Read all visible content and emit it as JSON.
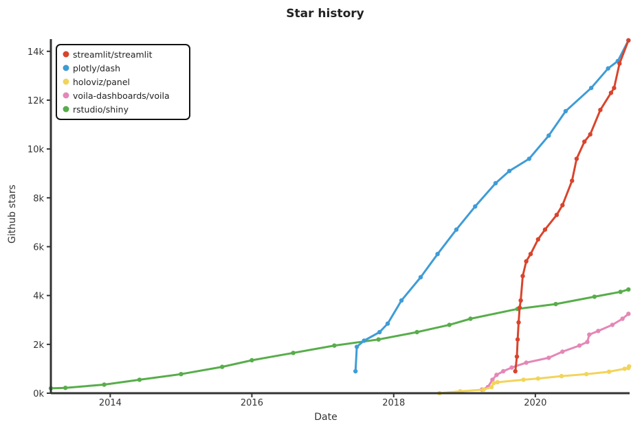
{
  "chart_data": {
    "type": "line",
    "title": "Star history",
    "xlabel": "Date",
    "ylabel": "Github stars",
    "xlim": [
      "2013-03-01",
      "2021-05-01"
    ],
    "ylim": [
      0,
      14500
    ],
    "x_ticks": [
      {
        "label": "2014",
        "date": "2014-01-01"
      },
      {
        "label": "2016",
        "date": "2016-01-01"
      },
      {
        "label": "2018",
        "date": "2018-01-01"
      },
      {
        "label": "2020",
        "date": "2020-01-01"
      }
    ],
    "y_ticks": [
      {
        "label": "0k",
        "value": 0
      },
      {
        "label": "2k",
        "value": 2000
      },
      {
        "label": "4k",
        "value": 4000
      },
      {
        "label": "6k",
        "value": 6000
      },
      {
        "label": "8k",
        "value": 8000
      },
      {
        "label": "10k",
        "value": 10000
      },
      {
        "label": "12k",
        "value": 12000
      },
      {
        "label": "14k",
        "value": 14000
      }
    ],
    "legend_position": "top-left",
    "grid": false,
    "series": [
      {
        "name": "streamlit/streamlit",
        "color": "#d9442c",
        "points": [
          [
            "2019-09-20",
            900
          ],
          [
            "2019-09-28",
            1500
          ],
          [
            "2019-10-02",
            2200
          ],
          [
            "2019-10-07",
            2900
          ],
          [
            "2019-10-12",
            3500
          ],
          [
            "2019-10-18",
            3800
          ],
          [
            "2019-10-28",
            4800
          ],
          [
            "2019-11-15",
            5400
          ],
          [
            "2019-12-08",
            5700
          ],
          [
            "2020-01-15",
            6300
          ],
          [
            "2020-02-20",
            6700
          ],
          [
            "2020-04-20",
            7300
          ],
          [
            "2020-05-20",
            7700
          ],
          [
            "2020-07-08",
            8700
          ],
          [
            "2020-08-01",
            9600
          ],
          [
            "2020-09-10",
            10300
          ],
          [
            "2020-10-10",
            10600
          ],
          [
            "2020-12-01",
            11600
          ],
          [
            "2021-01-25",
            12300
          ],
          [
            "2021-02-10",
            12500
          ],
          [
            "2021-03-10",
            13500
          ],
          [
            "2021-04-25",
            14450
          ]
        ]
      },
      {
        "name": "plotly/dash",
        "color": "#3e9cd6",
        "points": [
          [
            "2017-06-18",
            900
          ],
          [
            "2017-06-25",
            1900
          ],
          [
            "2017-08-01",
            2150
          ],
          [
            "2017-10-20",
            2500
          ],
          [
            "2017-12-01",
            2850
          ],
          [
            "2018-02-10",
            3800
          ],
          [
            "2018-05-20",
            4750
          ],
          [
            "2018-08-15",
            5700
          ],
          [
            "2018-11-20",
            6700
          ],
          [
            "2019-02-25",
            7650
          ],
          [
            "2019-06-10",
            8600
          ],
          [
            "2019-08-20",
            9100
          ],
          [
            "2019-11-30",
            9600
          ],
          [
            "2020-03-10",
            10550
          ],
          [
            "2020-06-05",
            11550
          ],
          [
            "2020-10-15",
            12500
          ],
          [
            "2021-01-10",
            13300
          ],
          [
            "2021-03-01",
            13600
          ],
          [
            "2021-04-25",
            14450
          ]
        ]
      },
      {
        "name": "holoviz/panel",
        "color": "#f2d45a",
        "points": [
          [
            "2018-08-25",
            0
          ],
          [
            "2018-12-10",
            80
          ],
          [
            "2019-04-10",
            150
          ],
          [
            "2019-05-20",
            250
          ],
          [
            "2019-06-01",
            420
          ],
          [
            "2019-06-20",
            450
          ],
          [
            "2019-11-01",
            550
          ],
          [
            "2020-01-15",
            600
          ],
          [
            "2020-05-15",
            700
          ],
          [
            "2020-09-20",
            780
          ],
          [
            "2021-01-15",
            880
          ],
          [
            "2021-04-05",
            1000
          ],
          [
            "2021-04-25",
            1030
          ],
          [
            "2021-04-28",
            1100
          ]
        ]
      },
      {
        "name": "voila-dashboards/voila",
        "color": "#e487b6",
        "points": [
          [
            "2019-04-01",
            150
          ],
          [
            "2019-05-01",
            250
          ],
          [
            "2019-05-25",
            550
          ],
          [
            "2019-06-15",
            750
          ],
          [
            "2019-07-20",
            900
          ],
          [
            "2019-09-01",
            1050
          ],
          [
            "2019-11-15",
            1250
          ],
          [
            "2020-03-10",
            1450
          ],
          [
            "2020-05-20",
            1700
          ],
          [
            "2020-08-15",
            1950
          ],
          [
            "2020-09-25",
            2100
          ],
          [
            "2020-10-05",
            2400
          ],
          [
            "2020-11-20",
            2550
          ],
          [
            "2021-02-01",
            2800
          ],
          [
            "2021-03-25",
            3050
          ],
          [
            "2021-04-25",
            3250
          ]
        ]
      },
      {
        "name": "rstudio/shiny",
        "color": "#57ad4a",
        "points": [
          [
            "2013-03-01",
            200
          ],
          [
            "2013-05-15",
            220
          ],
          [
            "2013-12-01",
            350
          ],
          [
            "2014-06-01",
            550
          ],
          [
            "2015-01-01",
            780
          ],
          [
            "2015-08-01",
            1080
          ],
          [
            "2016-01-01",
            1350
          ],
          [
            "2016-08-01",
            1650
          ],
          [
            "2017-03-01",
            1950
          ],
          [
            "2017-10-15",
            2200
          ],
          [
            "2018-05-01",
            2500
          ],
          [
            "2018-10-15",
            2800
          ],
          [
            "2019-02-01",
            3050
          ],
          [
            "2019-10-01",
            3450
          ],
          [
            "2020-04-15",
            3650
          ],
          [
            "2020-11-01",
            3950
          ],
          [
            "2021-03-15",
            4150
          ],
          [
            "2021-04-25",
            4250
          ]
        ]
      }
    ]
  }
}
